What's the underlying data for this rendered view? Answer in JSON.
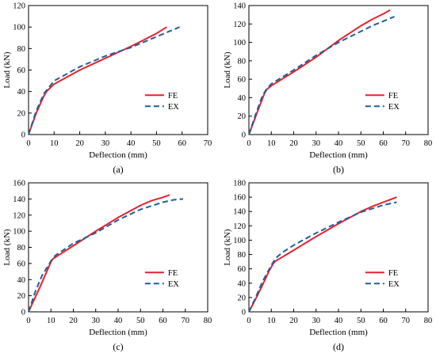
{
  "colors": {
    "fe": "#e8202a",
    "ex": "#1f5f9e"
  },
  "chart_data": [
    {
      "type": "line",
      "panel_label": "(a)",
      "xlabel": "Deflection (mm)",
      "ylabel": "Load (kN)",
      "xlim": [
        0,
        70
      ],
      "ylim": [
        0,
        120
      ],
      "xticks": [
        0,
        10,
        20,
        30,
        40,
        50,
        60,
        70
      ],
      "yticks": [
        0,
        20,
        40,
        60,
        80,
        100,
        120
      ],
      "legend_position": "bottom-right",
      "series": [
        {
          "name": "FE",
          "style": "solid",
          "x": [
            0,
            3,
            6,
            7,
            10,
            20,
            30,
            40,
            45,
            50,
            54
          ],
          "y": [
            0,
            20,
            36,
            40,
            47,
            60,
            71,
            82,
            88,
            94,
            100
          ]
        },
        {
          "name": "EX",
          "style": "dashed",
          "x": [
            0,
            3,
            6,
            7,
            10,
            20,
            30,
            40,
            45,
            50,
            55,
            59
          ],
          "y": [
            0,
            22,
            38,
            41,
            50,
            63,
            73,
            81,
            86,
            91,
            96,
            100
          ]
        }
      ]
    },
    {
      "type": "line",
      "panel_label": "(b)",
      "xlabel": "Deflection (mm)",
      "ylabel": "Load (kN)",
      "xlim": [
        0,
        80
      ],
      "ylim": [
        0,
        140
      ],
      "xticks": [
        0,
        10,
        20,
        30,
        40,
        50,
        60,
        70,
        80
      ],
      "yticks": [
        0,
        20,
        40,
        60,
        80,
        100,
        120,
        140
      ],
      "legend_position": "bottom-right",
      "series": [
        {
          "name": "FE",
          "style": "solid",
          "x": [
            0,
            4,
            7,
            8,
            10,
            20,
            30,
            40,
            50,
            55,
            60,
            63
          ],
          "y": [
            0,
            26,
            45,
            49,
            53,
            68,
            84,
            102,
            118,
            125,
            131,
            135
          ]
        },
        {
          "name": "EX",
          "style": "dashed",
          "x": [
            0,
            3,
            6,
            8,
            10,
            20,
            30,
            40,
            50,
            55,
            60,
            65
          ],
          "y": [
            0,
            22,
            42,
            50,
            55,
            70,
            86,
            100,
            112,
            118,
            123,
            128
          ]
        }
      ]
    },
    {
      "type": "line",
      "panel_label": "(c)",
      "xlabel": "Deflection (mm)",
      "ylabel": "Load (kN)",
      "xlim": [
        0,
        80
      ],
      "ylim": [
        0,
        160
      ],
      "xticks": [
        0,
        10,
        20,
        30,
        40,
        50,
        60,
        70,
        80
      ],
      "yticks": [
        0,
        20,
        40,
        60,
        80,
        100,
        120,
        140,
        160
      ],
      "legend_position": "bottom-right",
      "series": [
        {
          "name": "FE",
          "style": "solid",
          "x": [
            0,
            5,
            10,
            11,
            20,
            30,
            40,
            50,
            55,
            60,
            63
          ],
          "y": [
            0,
            30,
            62,
            66,
            82,
            100,
            117,
            132,
            138,
            142,
            145
          ]
        },
        {
          "name": "EX",
          "style": "dashed",
          "x": [
            0,
            3,
            6,
            10,
            12,
            20,
            30,
            40,
            50,
            60,
            65,
            69
          ],
          "y": [
            0,
            25,
            45,
            63,
            70,
            85,
            98,
            114,
            127,
            136,
            139,
            140
          ]
        }
      ]
    },
    {
      "type": "line",
      "panel_label": "(d)",
      "xlabel": "Deflection (mm)",
      "ylabel": "Load (kN)",
      "xlim": [
        0,
        80
      ],
      "ylim": [
        0,
        180
      ],
      "xticks": [
        0,
        10,
        20,
        30,
        40,
        50,
        60,
        70,
        80
      ],
      "yticks": [
        0,
        20,
        40,
        60,
        80,
        100,
        120,
        140,
        160,
        180
      ],
      "legend_position": "bottom-right",
      "series": [
        {
          "name": "FE",
          "style": "solid",
          "x": [
            0,
            3,
            6,
            9,
            11,
            12,
            20,
            30,
            40,
            50,
            55,
            60,
            66
          ],
          "y": [
            0,
            18,
            37,
            57,
            68,
            71,
            86,
            105,
            123,
            140,
            147,
            153,
            160
          ]
        },
        {
          "name": "EX",
          "style": "dashed",
          "x": [
            0,
            3,
            6,
            10,
            12,
            15,
            20,
            30,
            40,
            50,
            60,
            66
          ],
          "y": [
            0,
            20,
            42,
            65,
            75,
            83,
            93,
            110,
            125,
            139,
            149,
            153
          ]
        }
      ]
    }
  ]
}
